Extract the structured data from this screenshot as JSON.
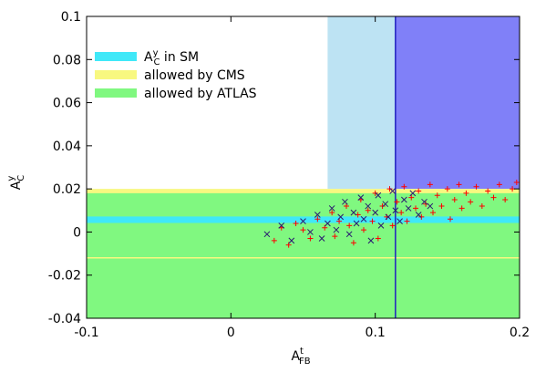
{
  "chart_data": {
    "type": "scatter",
    "xlabel": {
      "base": "A",
      "sub": "FB",
      "sup": "t"
    },
    "ylabel": {
      "base": "A",
      "sub": "C",
      "sup": "y"
    },
    "xlim": [
      -0.1,
      0.2
    ],
    "ylim": [
      -0.04,
      0.1
    ],
    "xticks": [
      -0.1,
      0,
      0.1,
      0.2
    ],
    "yticks": [
      -0.04,
      -0.02,
      0,
      0.02,
      0.04,
      0.06,
      0.08,
      0.1
    ],
    "regions": [
      {
        "xlim": [
          0.067,
          0.2
        ],
        "ylim": [
          0.02,
          0.1
        ],
        "color": "#bde3f3"
      },
      {
        "xlim": [
          0.114,
          0.2
        ],
        "ylim": [
          0.02,
          0.1
        ],
        "color": "#8080f8"
      },
      {
        "name": "allowed by CMS",
        "xlim": [
          -0.1,
          0.2
        ],
        "ylim": [
          -0.012,
          0.02
        ],
        "color": "#f8f880"
      },
      {
        "name": "allowed by ATLAS",
        "xlim": [
          -0.1,
          0.2
        ],
        "ylim": [
          -0.04,
          0.018
        ],
        "color": "#80f880"
      },
      {
        "name": {
          "base": "A",
          "sub": "C",
          "sup": "y",
          "text": " in SM"
        },
        "xlim": [
          -0.1,
          0.2
        ],
        "ylim": [
          0.0042,
          0.0072
        ],
        "color": "#40e8f8"
      }
    ],
    "vline": {
      "x": 0.114,
      "color": "#2020c0"
    },
    "series": [
      {
        "color": "#ff0000",
        "marker": "plus",
        "x": [
          0.03,
          0.035,
          0.04,
          0.045,
          0.05,
          0.055,
          0.06,
          0.065,
          0.07,
          0.072,
          0.075,
          0.08,
          0.082,
          0.085,
          0.088,
          0.09,
          0.092,
          0.095,
          0.098,
          0.1,
          0.102,
          0.105,
          0.108,
          0.11,
          0.112,
          0.115,
          0.118,
          0.12,
          0.122,
          0.125,
          0.128,
          0.13,
          0.132,
          0.135,
          0.138,
          0.14,
          0.143,
          0.146,
          0.15,
          0.152,
          0.155,
          0.158,
          0.16,
          0.163,
          0.166,
          0.17,
          0.174,
          0.178,
          0.182,
          0.186,
          0.19,
          0.195,
          0.198
        ],
        "values": [
          -0.004,
          0.002,
          -0.006,
          0.004,
          0.001,
          -0.003,
          0.006,
          0.002,
          0.009,
          -0.002,
          0.005,
          0.012,
          0.003,
          -0.005,
          0.008,
          0.015,
          0.001,
          0.01,
          0.005,
          0.018,
          -0.003,
          0.012,
          0.007,
          0.02,
          0.003,
          0.014,
          0.009,
          0.021,
          0.005,
          0.016,
          0.011,
          0.019,
          0.007,
          0.013,
          0.022,
          0.009,
          0.017,
          0.012,
          0.02,
          0.006,
          0.015,
          0.022,
          0.011,
          0.018,
          0.014,
          0.021,
          0.012,
          0.019,
          0.016,
          0.022,
          0.015,
          0.02,
          0.023
        ]
      },
      {
        "color": "#2a1a70",
        "marker": "cross",
        "x": [
          0.025,
          0.035,
          0.042,
          0.05,
          0.055,
          0.06,
          0.063,
          0.067,
          0.07,
          0.073,
          0.076,
          0.079,
          0.082,
          0.085,
          0.087,
          0.09,
          0.092,
          0.095,
          0.097,
          0.1,
          0.102,
          0.104,
          0.107,
          0.109,
          0.112,
          0.114,
          0.117,
          0.12,
          0.123,
          0.126,
          0.13,
          0.134,
          0.138
        ],
        "values": [
          -0.001,
          0.003,
          -0.004,
          0.005,
          0,
          0.008,
          -0.003,
          0.004,
          0.011,
          0.001,
          0.007,
          0.014,
          -0.001,
          0.009,
          0.004,
          0.016,
          0.006,
          0.012,
          -0.004,
          0.009,
          0.017,
          0.003,
          0.013,
          0.007,
          0.019,
          0.01,
          0.005,
          0.015,
          0.011,
          0.018,
          0.008,
          0.014,
          0.012
        ]
      }
    ]
  }
}
